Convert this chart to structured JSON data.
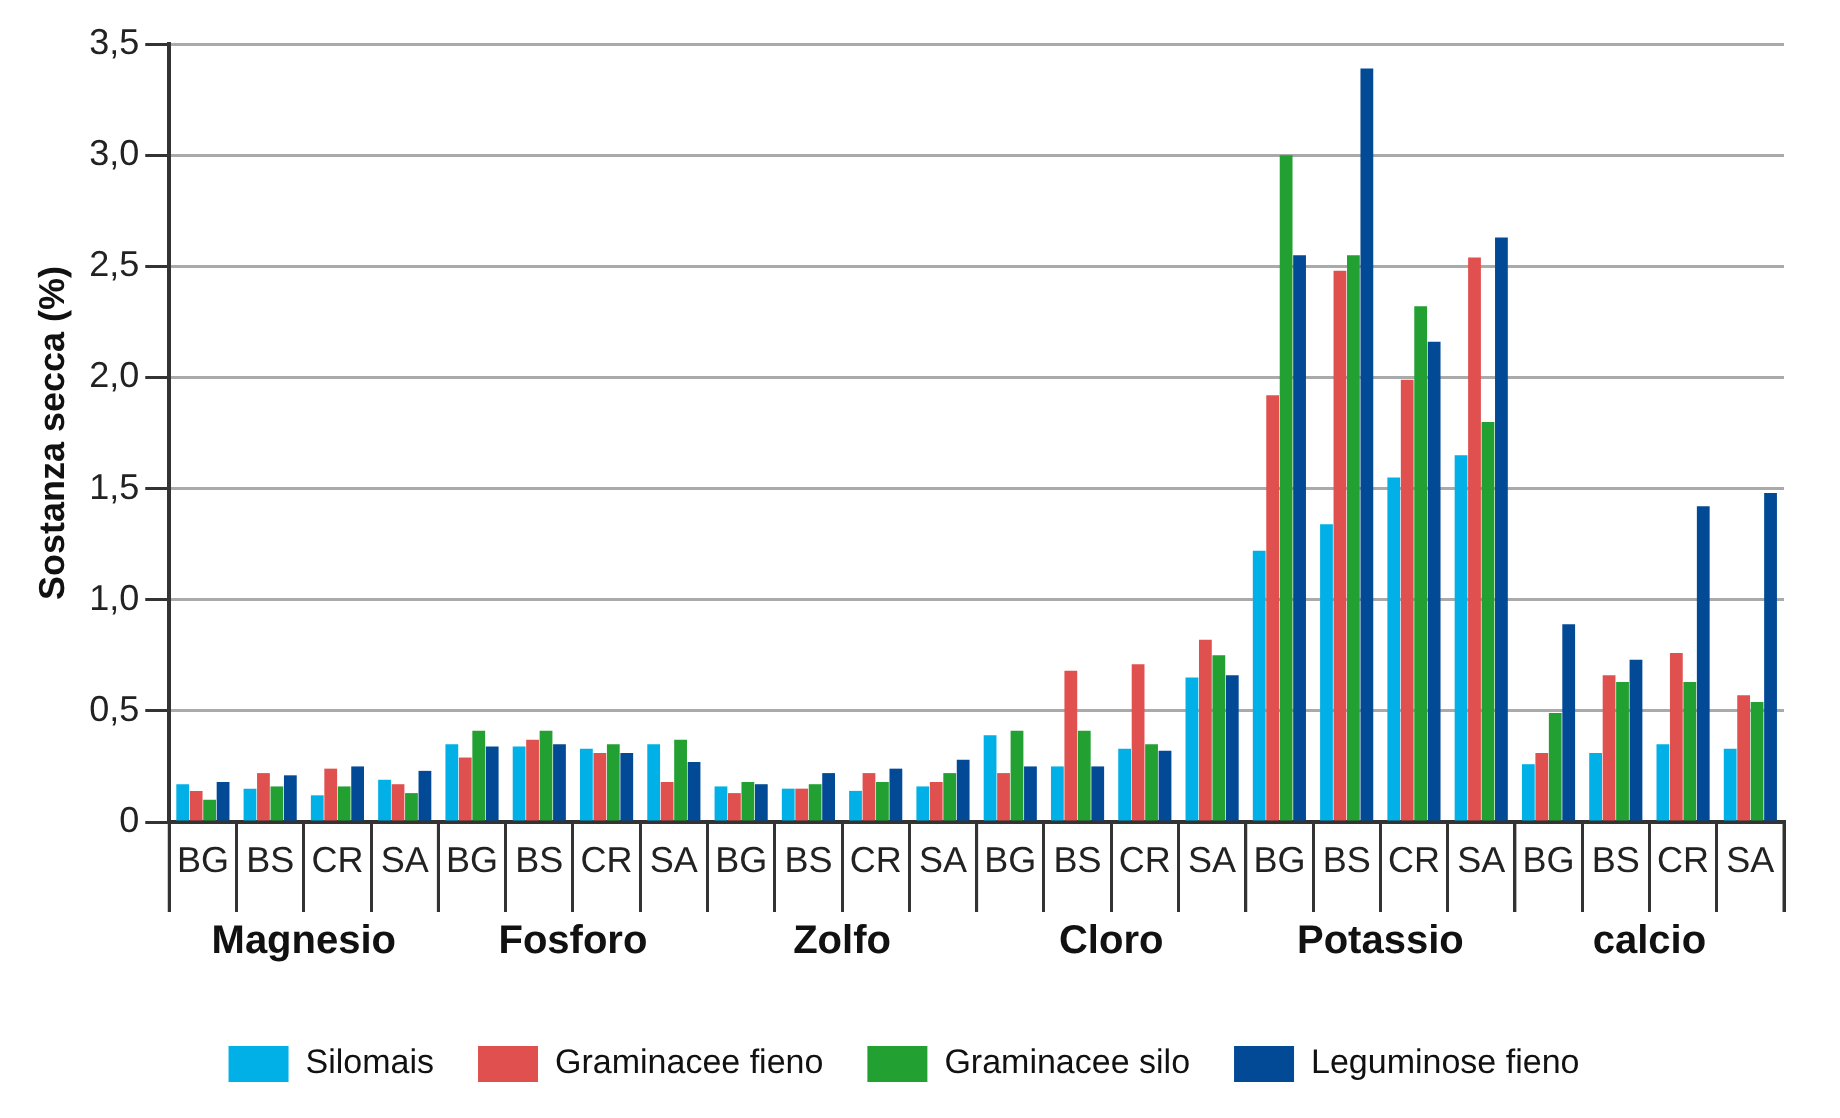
{
  "chart_data": {
    "type": "bar",
    "ylabel": "Sostanza secca (%)",
    "categories": [
      "BG",
      "BS",
      "CR",
      "SA",
      "BG",
      "BS",
      "CR",
      "SA",
      "BG",
      "BS",
      "CR",
      "SA",
      "BG",
      "BS",
      "CR",
      "SA",
      "BG",
      "BS",
      "CR",
      "SA",
      "BG",
      "BS",
      "CR",
      "SA"
    ],
    "series": [
      {
        "name": "Silomais",
        "color": "#00b0e6",
        "values": [
          0.17,
          0.15,
          0.12,
          0.19,
          0.35,
          0.34,
          0.33,
          0.35,
          0.16,
          0.15,
          0.14,
          0.16,
          0.39,
          0.25,
          0.33,
          0.65,
          1.22,
          1.34,
          1.55,
          1.65,
          0.26,
          0.31,
          0.35,
          0.33
        ]
      },
      {
        "name": "Graminacee fieno",
        "color": "#e0504f",
        "values": [
          0.14,
          0.22,
          0.24,
          0.17,
          0.29,
          0.37,
          0.31,
          0.18,
          0.13,
          0.15,
          0.22,
          0.18,
          0.22,
          0.68,
          0.71,
          0.82,
          1.92,
          2.48,
          1.99,
          2.54,
          0.31,
          0.66,
          0.76,
          0.57
        ]
      },
      {
        "name": "Graminacee silo",
        "color": "#22a032",
        "values": [
          0.1,
          0.16,
          0.16,
          0.13,
          0.41,
          0.41,
          0.35,
          0.37,
          0.18,
          0.17,
          0.18,
          0.22,
          0.41,
          0.41,
          0.35,
          0.75,
          3.0,
          2.55,
          2.32,
          1.8,
          0.49,
          0.63,
          0.63,
          0.54
        ]
      },
      {
        "name": "Leguminose fieno",
        "color": "#034a96",
        "values": [
          0.18,
          0.21,
          0.25,
          0.23,
          0.34,
          0.35,
          0.31,
          0.27,
          0.17,
          0.22,
          0.24,
          0.28,
          0.25,
          0.25,
          0.32,
          0.66,
          2.55,
          3.39,
          2.16,
          2.63,
          0.89,
          0.73,
          1.42,
          1.48
        ]
      }
    ],
    "ylim": [
      0,
      3.5
    ],
    "yticks": [
      {
        "value": 0,
        "label": "0"
      },
      {
        "value": 0.5,
        "label": "0,5"
      },
      {
        "value": 1,
        "label": "1,0"
      },
      {
        "value": 1.5,
        "label": "1,5"
      },
      {
        "value": 2,
        "label": "2,0"
      },
      {
        "value": 2.5,
        "label": "2,5"
      },
      {
        "value": 3,
        "label": "3,0"
      },
      {
        "value": 3.5,
        "label": "3,5"
      }
    ],
    "grid": "y",
    "legend": "bottom",
    "annotations": [
      "Magnesio",
      "Fosforo",
      "Zolfo",
      "Cloro",
      "Potassio",
      "calcio"
    ]
  }
}
